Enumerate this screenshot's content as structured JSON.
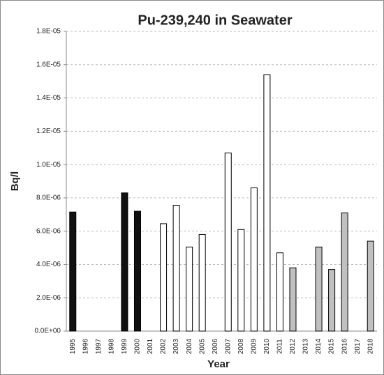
{
  "chart_data": {
    "type": "bar",
    "title": "Pu-239,240 in Seawater",
    "x_label": "Year",
    "y_label": "Bq/l",
    "categories": [
      "1995",
      "1996",
      "1997",
      "1998",
      "1999",
      "2000",
      "2001",
      "2002",
      "2003",
      "2004",
      "2005",
      "2006",
      "2007",
      "2008",
      "2009",
      "2010",
      "2011",
      "2012",
      "2013",
      "2014",
      "2015",
      "2016",
      "2017",
      "2018"
    ],
    "values": [
      7.15e-06,
      null,
      null,
      null,
      8.3e-06,
      7.2e-06,
      null,
      6.45e-06,
      7.55e-06,
      5.05e-06,
      5.8e-06,
      null,
      1.07e-05,
      6.1e-06,
      8.6e-06,
      1.54e-05,
      4.7e-06,
      3.8e-06,
      null,
      5.05e-06,
      3.7e-06,
      7.1e-06,
      null,
      5.4e-06
    ],
    "colors": [
      "#111111",
      "#111111",
      "#111111",
      "#111111",
      "#111111",
      "#111111",
      "#ffffff",
      "#ffffff",
      "#ffffff",
      "#ffffff",
      "#ffffff",
      "#ffffff",
      "#ffffff",
      "#ffffff",
      "#ffffff",
      "#ffffff",
      "#ffffff",
      "#c0c0c0",
      "#c0c0c0",
      "#c0c0c0",
      "#c0c0c0",
      "#c0c0c0",
      "#c0c0c0",
      "#c0c0c0"
    ],
    "ylim": [
      0,
      1.8e-05
    ],
    "yticks": [
      {
        "value": 0,
        "label": "0.0E+00"
      },
      {
        "value": 2e-06,
        "label": "2.0E-06"
      },
      {
        "value": 4e-06,
        "label": "4.0E-06"
      },
      {
        "value": 6e-06,
        "label": "6.0E-06"
      },
      {
        "value": 8e-06,
        "label": "8.0E-06"
      },
      {
        "value": 1e-05,
        "label": "1.0E-05"
      },
      {
        "value": 1.2e-05,
        "label": "1.2E-05"
      },
      {
        "value": 1.4e-05,
        "label": "1.4E-05"
      },
      {
        "value": 1.6e-05,
        "label": "1.6E-05"
      },
      {
        "value": 1.8e-05,
        "label": "1.8E-05"
      }
    ],
    "grid": true
  }
}
